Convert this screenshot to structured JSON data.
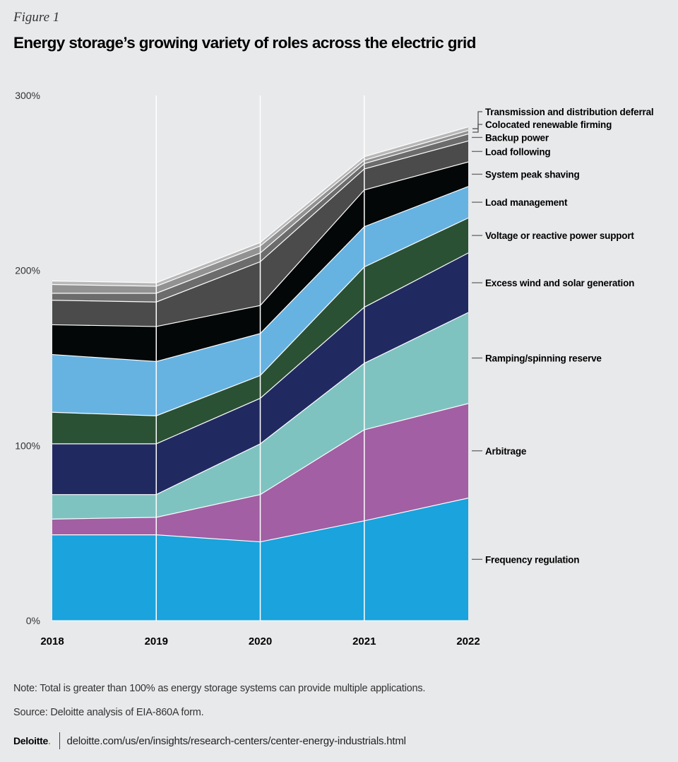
{
  "figure_label": "Figure 1",
  "chart_data": {
    "type": "area",
    "stacked": true,
    "title": "Energy storage’s growing variety of roles across the electric grid",
    "xlabel": "",
    "ylabel": "",
    "categories": [
      "2018",
      "2019",
      "2020",
      "2021",
      "2022"
    ],
    "ylim": [
      0,
      300
    ],
    "yticks": [
      "0%",
      "100%",
      "200%",
      "300%"
    ],
    "ytick_values": [
      0,
      100,
      200,
      300
    ],
    "grid": false,
    "legend": "right (direct labels)",
    "series": [
      {
        "name": "Frequency regulation",
        "color": "#1aa3dc",
        "values": [
          49,
          49,
          45,
          57,
          70
        ]
      },
      {
        "name": "Arbitrage",
        "color": "#a25fa3",
        "values": [
          9,
          10,
          27,
          52,
          54
        ]
      },
      {
        "name": "Ramping/spinning reserve",
        "color": "#7fc3c1",
        "values": [
          14,
          13,
          29,
          38,
          52
        ]
      },
      {
        "name": "Excess wind and solar generation",
        "color": "#212a60",
        "values": [
          29,
          29,
          26,
          32,
          34
        ]
      },
      {
        "name": "Voltage or reactive power support",
        "color": "#2b5135",
        "values": [
          18,
          16,
          13,
          23,
          20
        ]
      },
      {
        "name": "Load management",
        "color": "#66b3e2",
        "values": [
          33,
          31,
          24,
          23,
          18
        ]
      },
      {
        "name": "System peak shaving",
        "color": "#040708",
        "values": [
          17,
          20,
          16,
          21,
          14
        ]
      },
      {
        "name": "Load following",
        "color": "#4b4b4b",
        "values": [
          14,
          14,
          25,
          12,
          12
        ]
      },
      {
        "name": "Backup power",
        "color": "#6c6c6c",
        "values": [
          4,
          5,
          5,
          3,
          4
        ]
      },
      {
        "name": "Colocated renewable firming",
        "color": "#929292",
        "values": [
          5,
          4,
          4,
          2,
          2
        ]
      },
      {
        "name": "Transmission and distribution deferral",
        "color": "#b8b8b8",
        "values": [
          2,
          2,
          2,
          2,
          2
        ]
      }
    ]
  },
  "note": "Note: Total is greater than 100% as energy storage systems can provide multiple applications.",
  "source": "Source: Deloitte analysis of EIA-860A form.",
  "footer": {
    "logo": "Deloitte",
    "logo_dot": ".",
    "url": "deloitte.com/us/en/insights/research-centers/center-energy-industrials.html"
  }
}
